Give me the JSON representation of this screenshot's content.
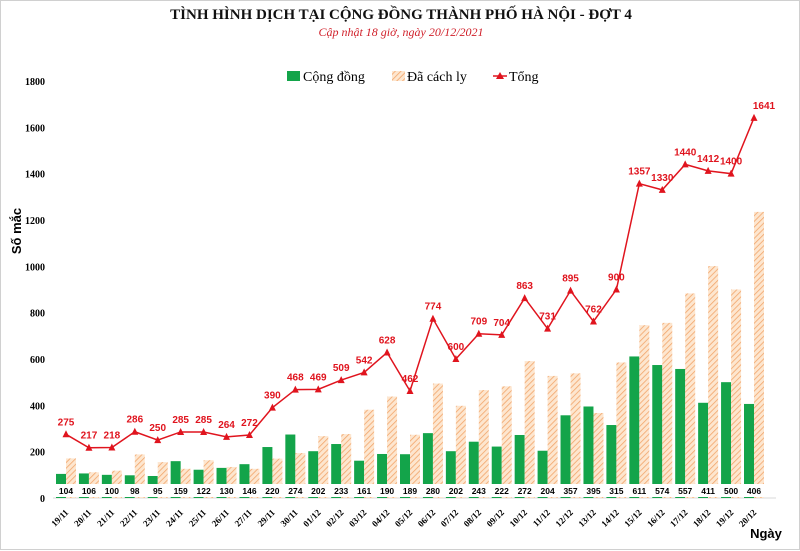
{
  "chart_data": {
    "type": "bar",
    "title": "TÌNH HÌNH DỊCH TẠI CỘNG ĐỒNG THÀNH PHỐ HÀ NỘI - ĐỢT 4",
    "subtitle": "Cập nhật 18 giờ, ngày 20/12/2021",
    "xlabel": "Ngày",
    "ylabel": "Số mắc",
    "ylim": [
      0,
      1800
    ],
    "yticks": [
      0,
      200,
      400,
      600,
      800,
      1000,
      1200,
      1400,
      1600,
      1800
    ],
    "grid": false,
    "legend_position": "top-center",
    "categories": [
      "19/11",
      "20/11",
      "21/11",
      "22/11",
      "23/11",
      "24/11",
      "25/11",
      "26/11",
      "27/11",
      "29/11",
      "30/11",
      "01/12",
      "02/12",
      "03/12",
      "04/12",
      "05/12",
      "06/12",
      "07/12",
      "08/12",
      "09/12",
      "10/12",
      "11/12",
      "12/12",
      "13/12",
      "14/12",
      "15/12",
      "16/12",
      "17/12",
      "18/12",
      "19/12",
      "20/12"
    ],
    "series": [
      {
        "name": "Cộng đồng",
        "type": "bar",
        "color": "#13a44a",
        "values": [
          104,
          106,
          100,
          98,
          95,
          159,
          122,
          130,
          146,
          220,
          274,
          202,
          233,
          161,
          190,
          189,
          280,
          202,
          243,
          222,
          272,
          204,
          357,
          395,
          315,
          611,
          574,
          557,
          411,
          500,
          406
        ]
      },
      {
        "name": "Đã cách ly",
        "type": "bar-hatched",
        "color": "#f4b183",
        "values": [
          171,
          111,
          118,
          188,
          155,
          126,
          163,
          134,
          126,
          170,
          194,
          267,
          276,
          381,
          438,
          273,
          494,
          398,
          466,
          482,
          591,
          527,
          538,
          367,
          585,
          746,
          756,
          883,
          1001,
          900,
          1235
        ]
      },
      {
        "name": "Tổng",
        "type": "line",
        "color": "#e0141e",
        "values": [
          275,
          217,
          218,
          286,
          250,
          285,
          285,
          264,
          272,
          390,
          468,
          469,
          509,
          542,
          628,
          462,
          774,
          600,
          709,
          704,
          863,
          731,
          895,
          762,
          900,
          1357,
          1330,
          1440,
          1412,
          1400,
          1641
        ]
      }
    ]
  }
}
